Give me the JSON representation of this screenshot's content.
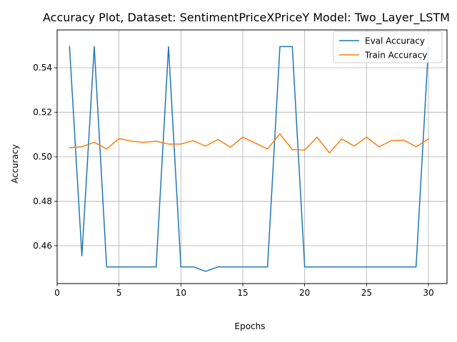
{
  "chart_data": {
    "type": "line",
    "title": "Accuracy Plot, Dataset: SentimentPriceXPriceY Model: Two_Layer_LSTM",
    "xlabel": "Epochs",
    "ylabel": "Accuracy",
    "xlim": [
      0,
      31.5
    ],
    "ylim": [
      0.443,
      0.557
    ],
    "xticks": [
      0,
      5,
      10,
      15,
      20,
      25,
      30
    ],
    "yticks": [
      0.46,
      0.48,
      0.5,
      0.52,
      0.54
    ],
    "ytick_labels": [
      "0.46",
      "0.48",
      "0.50",
      "0.52",
      "0.54"
    ],
    "grid": true,
    "legend_position": "top-right",
    "x": [
      1,
      2,
      3,
      4,
      5,
      6,
      7,
      8,
      9,
      10,
      11,
      12,
      13,
      14,
      15,
      16,
      17,
      18,
      19,
      20,
      21,
      22,
      23,
      24,
      25,
      26,
      27,
      28,
      29,
      30
    ],
    "series": [
      {
        "name": "Eval Accuracy",
        "color": "#1f77b4",
        "values": [
          0.5495,
          0.4555,
          0.5495,
          0.4505,
          0.4505,
          0.4505,
          0.4505,
          0.4505,
          0.5495,
          0.4505,
          0.4505,
          0.4485,
          0.4505,
          0.4505,
          0.4505,
          0.4505,
          0.4505,
          0.5495,
          0.5495,
          0.4505,
          0.4505,
          0.4505,
          0.4505,
          0.4505,
          0.4505,
          0.4505,
          0.4505,
          0.4505,
          0.4505,
          0.5495
        ]
      },
      {
        "name": "Train Accuracy",
        "color": "#ff7f0e",
        "values": [
          0.504,
          0.5045,
          0.5065,
          0.5035,
          0.5082,
          0.507,
          0.5065,
          0.507,
          0.5057,
          0.5057,
          0.5072,
          0.5048,
          0.5078,
          0.5043,
          0.5088,
          0.5062,
          0.5035,
          0.5103,
          0.5032,
          0.503,
          0.5088,
          0.5017,
          0.508,
          0.5048,
          0.5088,
          0.5045,
          0.5072,
          0.5075,
          0.5045,
          0.508
        ]
      }
    ]
  }
}
